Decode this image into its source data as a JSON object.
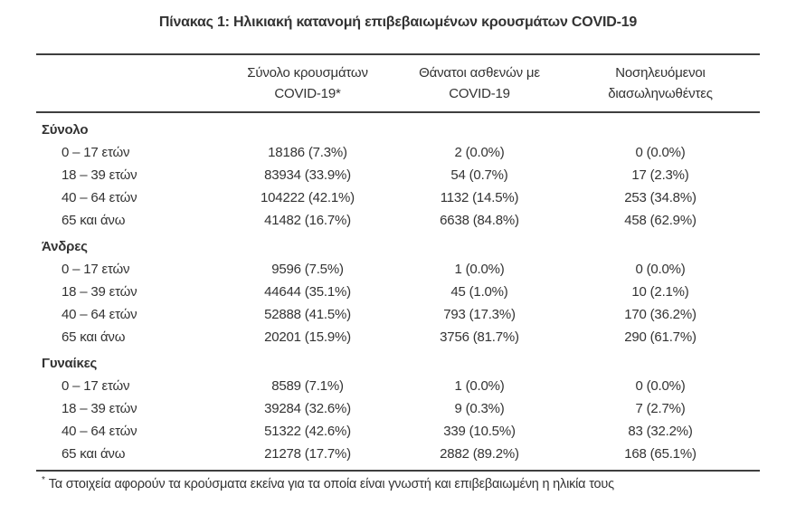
{
  "title": "Πίνακας 1: Ηλικιακή κατανομή επιβεβαιωμένων κρουσμάτων COVID-19",
  "table": {
    "columns": {
      "cases": {
        "line1": "Σύνολο κρουσμάτων",
        "line2": "COVID-19*"
      },
      "deaths": {
        "line1": "Θάνατοι ασθενών με",
        "line2": "COVID-19"
      },
      "intubated": {
        "line1": "Νοσηλευόμενοι",
        "line2": "διασωληνωθέντες"
      }
    },
    "sections": [
      {
        "label": "Σύνολο",
        "rows": [
          {
            "label": "0 – 17 ετών",
            "cases": "18186 (7.3%)",
            "deaths": "2 (0.0%)",
            "intubated": "0 (0.0%)"
          },
          {
            "label": "18 – 39 ετών",
            "cases": "83934 (33.9%)",
            "deaths": "54 (0.7%)",
            "intubated": "17 (2.3%)"
          },
          {
            "label": "40 – 64 ετών",
            "cases": "104222 (42.1%)",
            "deaths": "1132 (14.5%)",
            "intubated": "253 (34.8%)"
          },
          {
            "label": "65 και άνω",
            "cases": "41482 (16.7%)",
            "deaths": "6638 (84.8%)",
            "intubated": "458 (62.9%)"
          }
        ]
      },
      {
        "label": "Άνδρες",
        "rows": [
          {
            "label": "0 – 17 ετών",
            "cases": "9596 (7.5%)",
            "deaths": "1 (0.0%)",
            "intubated": "0 (0.0%)"
          },
          {
            "label": "18 – 39 ετών",
            "cases": "44644 (35.1%)",
            "deaths": "45 (1.0%)",
            "intubated": "10 (2.1%)"
          },
          {
            "label": "40 – 64 ετών",
            "cases": "52888 (41.5%)",
            "deaths": "793 (17.3%)",
            "intubated": "170 (36.2%)"
          },
          {
            "label": "65 και άνω",
            "cases": "20201 (15.9%)",
            "deaths": "3756 (81.7%)",
            "intubated": "290 (61.7%)"
          }
        ]
      },
      {
        "label": "Γυναίκες",
        "rows": [
          {
            "label": "0 – 17 ετών",
            "cases": "8589 (7.1%)",
            "deaths": "1 (0.0%)",
            "intubated": "0 (0.0%)"
          },
          {
            "label": "18 – 39 ετών",
            "cases": "39284 (32.6%)",
            "deaths": "9 (0.3%)",
            "intubated": "7 (2.7%)"
          },
          {
            "label": "40 – 64 ετών",
            "cases": "51322 (42.6%)",
            "deaths": "339 (10.5%)",
            "intubated": "83 (32.2%)"
          },
          {
            "label": "65 και άνω",
            "cases": "21278 (17.7%)",
            "deaths": "2882 (89.2%)",
            "intubated": "168 (65.1%)"
          }
        ]
      }
    ]
  },
  "footnote": {
    "marker": "*",
    "text": "Τα στοιχεία αφορούν τα κρούσματα εκείνα για τα οποία είναι γνωστή και επιβεβαιωμένη η ηλικία τους"
  },
  "colors": {
    "text": "#333333",
    "rule": "#3f3f3f",
    "background": "#ffffff"
  }
}
